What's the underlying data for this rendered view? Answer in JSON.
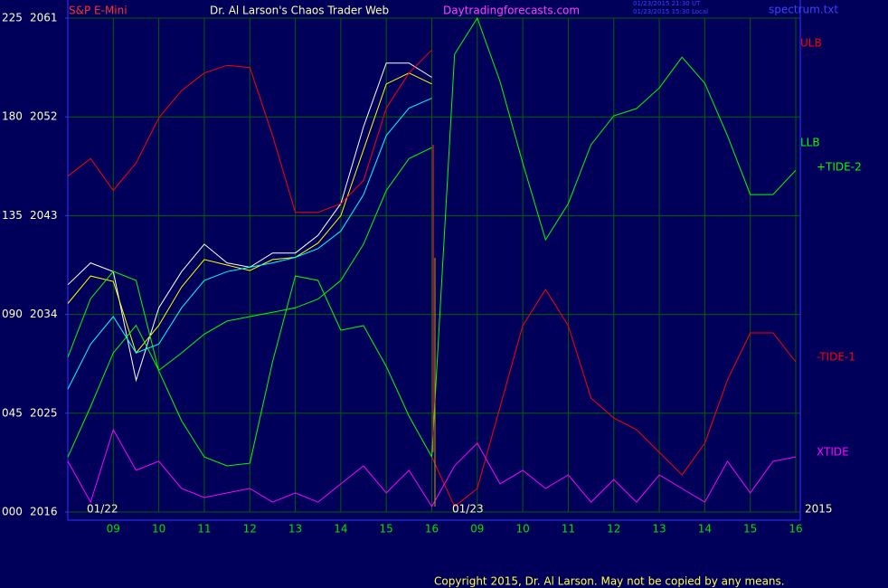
{
  "header": {
    "instrument": "S&P E-Mini",
    "title": "Dr. Al Larson's Chaos Trader Web",
    "site": "Daytradingforecasts.com",
    "stamp_ut": "01/23/2015 21:30 UT",
    "stamp_local": "01/23/2015 15:30 Local",
    "file": "spectrum.txt"
  },
  "footer": {
    "copyright": "Copyright 2015, Dr. Al Larson. May not be copied by any means."
  },
  "chart_data": {
    "type": "line",
    "annotations": {
      "day1": "01/22",
      "day2": "01/23",
      "year": "2015"
    },
    "x": [
      0,
      0.5,
      1,
      1.5,
      2,
      2.5,
      3,
      3.5,
      4,
      4.5,
      5,
      5.5,
      6,
      6.5,
      7,
      7.5,
      8,
      8.5,
      9,
      9.5,
      10,
      10.5,
      11,
      11.5,
      12,
      12.5,
      13,
      13.5,
      14,
      14.5,
      15,
      15.5,
      16
    ],
    "xlim": [
      0,
      16
    ],
    "xticks": [
      {
        "value": 1,
        "label": "09"
      },
      {
        "value": 2,
        "label": "10"
      },
      {
        "value": 3,
        "label": "11"
      },
      {
        "value": 4,
        "label": "12"
      },
      {
        "value": 5,
        "label": "13"
      },
      {
        "value": 6,
        "label": "14"
      },
      {
        "value": 7,
        "label": "15"
      },
      {
        "value": 8,
        "label": "16"
      },
      {
        "value": 9,
        "label": "09"
      },
      {
        "value": 10,
        "label": "10"
      },
      {
        "value": 11,
        "label": "11"
      },
      {
        "value": 12,
        "label": "12"
      },
      {
        "value": 13,
        "label": "13"
      },
      {
        "value": 14,
        "label": "14"
      },
      {
        "value": 15,
        "label": "15"
      },
      {
        "value": 16,
        "label": "16"
      }
    ],
    "ylim": [
      2016,
      2061
    ],
    "yticks": [
      2016,
      2025,
      2034,
      2043,
      2052,
      2061
    ],
    "y2lim": [
      0,
      225
    ],
    "y2ticks": [
      {
        "value": 0,
        "label": "000"
      },
      {
        "value": 45,
        "label": "045"
      },
      {
        "value": 90,
        "label": "090"
      },
      135,
      180,
      225
    ],
    "grid": true,
    "series": [
      {
        "color": "#ffffff",
        "values": [
          2036.7,
          2038.7,
          2037.9,
          2028.0,
          2034.6,
          2037.9,
          2040.4,
          2038.7,
          2038.3,
          2039.6,
          2039.6,
          2041.2,
          2044.1,
          2051.1,
          2056.9,
          2056.9,
          2055.6,
          null,
          null,
          null,
          null,
          null,
          null,
          null,
          null,
          null,
          null,
          null,
          null,
          null,
          null,
          null,
          null
        ]
      },
      {
        "color": "#ffff00",
        "values": [
          2035.0,
          2037.5,
          2037.0,
          2030.5,
          2033.0,
          2036.5,
          2039.0,
          2038.5,
          2038.0,
          2039.0,
          2039.2,
          2040.5,
          2043.0,
          2049.0,
          2055.0,
          2056.0,
          2055.0,
          null,
          null,
          null,
          null,
          null,
          null,
          null,
          null,
          null,
          null,
          null,
          null,
          null,
          null,
          null,
          null
        ]
      },
      {
        "name": "ULB",
        "color": "#ff0000",
        "values": [
          2046.6,
          2048.2,
          2045.3,
          2047.8,
          2051.9,
          2054.4,
          2056.0,
          2056.7,
          2056.5,
          2050.3,
          2043.3,
          2043.3,
          2044.1,
          2046.2,
          2052.8,
          2056.0,
          2058.1,
          null,
          null,
          null,
          null,
          null,
          null,
          null,
          null,
          null,
          null,
          null,
          null,
          null,
          null,
          null,
          null
        ]
      },
      {
        "color": "#00ffff",
        "values": [
          2027.2,
          2031.3,
          2033.8,
          2030.5,
          2031.3,
          2034.6,
          2037.1,
          2037.9,
          2038.3,
          2038.7,
          2039.2,
          2040.0,
          2041.6,
          2044.9,
          2050.3,
          2052.8,
          2053.7,
          null,
          null,
          null,
          null,
          null,
          null,
          null,
          null,
          null,
          null,
          null,
          null,
          null,
          null,
          null,
          null
        ]
      },
      {
        "name": "LLB",
        "color": "#00ff00",
        "values": [
          2021.0,
          2025.6,
          2030.5,
          2033.0,
          2028.9,
          2030.5,
          2032.2,
          2033.4,
          2033.8,
          2034.2,
          2034.6,
          2035.4,
          2037.1,
          2040.4,
          2045.3,
          2048.2,
          2049.2,
          null,
          null,
          null,
          null,
          null,
          null,
          null,
          null,
          null,
          null,
          null,
          null,
          null,
          null,
          null,
          null
        ]
      },
      {
        "name": "+TIDE-2",
        "color": "#00ff00",
        "axis": "y2",
        "values": [
          70.5,
          97.2,
          109.6,
          105.5,
          64.3,
          41.6,
          25.1,
          21.0,
          22.2,
          68.4,
          107.5,
          105.5,
          82.8,
          84.9,
          66.3,
          43.7,
          25.1,
          208.5,
          225.0,
          196.1,
          159.0,
          124.0,
          140.5,
          167.3,
          180.5,
          183.8,
          193.2,
          207.2,
          195.3,
          171.4,
          144.6,
          144.6,
          155.7
        ]
      },
      {
        "name": "-TIDE-1",
        "color": "#ff0000",
        "axis": "y2",
        "values": [
          null,
          null,
          null,
          null,
          null,
          null,
          null,
          null,
          null,
          null,
          null,
          null,
          null,
          null,
          null,
          null,
          25.1,
          2.5,
          10.7,
          47.8,
          84.9,
          101.4,
          84.9,
          51.9,
          42.8,
          37.5,
          27.2,
          16.9,
          31.3,
          60.2,
          81.6,
          81.6,
          68.4
        ]
      },
      {
        "name": "XTIDE",
        "color": "#ff00ff",
        "axis": "y2",
        "values": [
          23.1,
          4.5,
          37.5,
          19.0,
          23.1,
          10.7,
          6.6,
          8.7,
          10.7,
          4.5,
          8.7,
          4.5,
          12.8,
          21.0,
          8.7,
          19.0,
          2.5,
          21.0,
          31.3,
          12.8,
          19.0,
          10.7,
          16.9,
          4.5,
          14.8,
          4.5,
          16.9,
          10.7,
          4.5,
          23.1,
          8.7,
          23.1,
          25.1
        ]
      }
    ]
  }
}
